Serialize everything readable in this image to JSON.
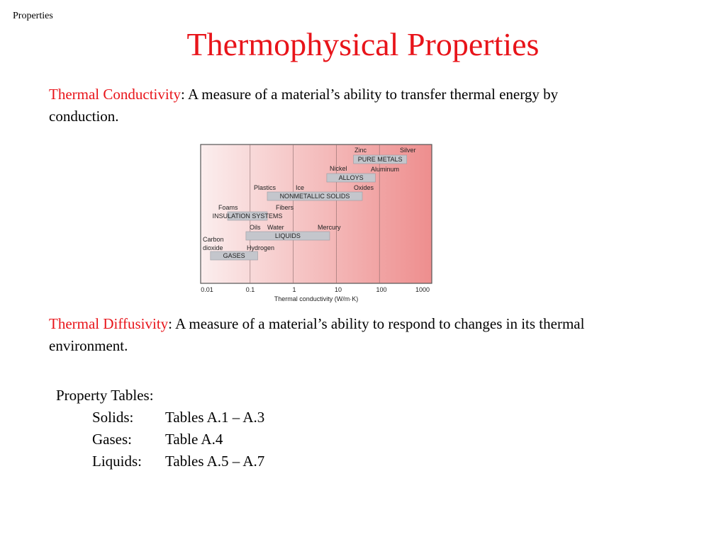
{
  "header": {
    "corner_label": "Properties"
  },
  "title": "Thermophysical Properties",
  "conductivity": {
    "term": "Thermal Conductivity",
    "definition": ":  A measure of a material’s ability to transfer thermal energy by conduction."
  },
  "diffusivity": {
    "term": "Thermal Diffusivity",
    "definition": ":  A measure of a material’s ability to respond to changes in its thermal environment."
  },
  "figure": {
    "bars": [
      {
        "label": "PURE METALS",
        "range": [
          25,
          430
        ]
      },
      {
        "label": "ALLOYS",
        "range": [
          6,
          80
        ]
      },
      {
        "label": "NONMETALLIC SOLIDS",
        "range": [
          0.25,
          40
        ]
      },
      {
        "label": "INSULATION SYSTEMS",
        "range": [
          0.03,
          0.25
        ]
      },
      {
        "label": "LIQUIDS",
        "range": [
          0.08,
          7
        ]
      },
      {
        "label": "GASES",
        "range": [
          0.012,
          0.15
        ]
      }
    ],
    "materials": [
      "Zinc",
      "Silver",
      "Nickel",
      "Aluminum",
      "Plastics",
      "Ice",
      "Oxides",
      "Foams",
      "Fibers",
      "Oils",
      "Water",
      "Mercury",
      "Carbon",
      "dioxide",
      "Hydrogen"
    ],
    "ticks": [
      "0.01",
      "0.1",
      "1",
      "10",
      "100",
      "1000"
    ],
    "xlabel": "Thermal conductivity (W/m·K)"
  },
  "tables": {
    "heading": "Property Tables:",
    "rows": [
      {
        "key": "Solids:",
        "value": "Tables A.1 – A.3"
      },
      {
        "key": "Gases:",
        "value": "Table A.4"
      },
      {
        "key": "Liquids:",
        "value": "Tables A.5 – A.7"
      }
    ]
  }
}
